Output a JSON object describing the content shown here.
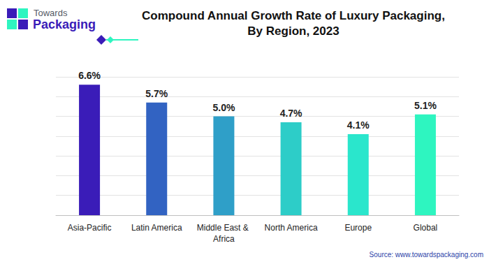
{
  "chart_data": {
    "type": "bar",
    "title": "Compound Annual Growth Rate of Luxury Packaging,\nBy Region, 2023",
    "categories": [
      "Asia-Pacific",
      "Latin America",
      "Middle East & Africa",
      "North America",
      "Europe",
      "Global"
    ],
    "values": [
      6.6,
      5.7,
      5.0,
      4.7,
      4.1,
      5.1
    ],
    "value_labels": [
      "6.6%",
      "5.7%",
      "5.0%",
      "4.7%",
      "4.1%",
      "5.1%"
    ],
    "colors": [
      "#3a1cb8",
      "#3263c2",
      "#2f9fc8",
      "#2dcdc8",
      "#2ae6cc",
      "#2ef5c0"
    ],
    "ylim": [
      0,
      7
    ],
    "yticks": [
      0,
      1,
      2,
      3,
      4,
      5,
      6,
      7
    ],
    "grid": true,
    "data_labels": true,
    "tick_labels": "x"
  },
  "logo": {
    "line1": "Towards",
    "line2": "Packaging"
  },
  "source": "Source: www.towardspackaging.com"
}
